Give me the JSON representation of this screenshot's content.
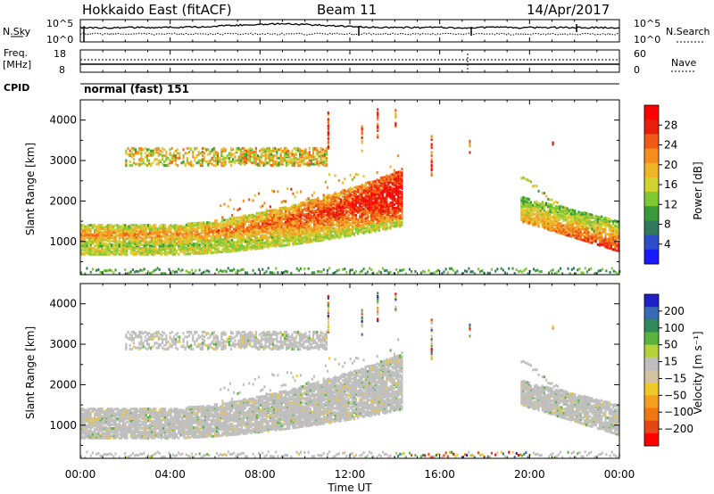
{
  "header": {
    "radar": "Hokkaido East (fitACF)",
    "beam": "Beam 11",
    "date": "14/Apr/2017"
  },
  "noise_panel": {
    "left_label": "N.Sky",
    "right_label": "N.Search",
    "left_ticks": [
      "10^5",
      "10^0"
    ],
    "right_ticks": [
      "10^5",
      "10^0"
    ]
  },
  "freq_panel": {
    "left_label": "Freq.",
    "left_unit": "[MHz]",
    "left_ticks": [
      "18",
      "8"
    ],
    "right_label": "Nave",
    "right_ticks": [
      "60",
      "0"
    ]
  },
  "cpid": {
    "label": "CPID",
    "value": "normal (fast) 151"
  },
  "x_axis": {
    "label": "Time UT",
    "ticks": [
      "00:00",
      "04:00",
      "08:00",
      "12:00",
      "16:00",
      "20:00",
      "00:00"
    ]
  },
  "chart_data": [
    {
      "type": "heatmap",
      "title": "",
      "xlabel": "Time UT",
      "ylabel": "Slant Range [km]",
      "xlim_hours": [
        0,
        24
      ],
      "ylim_km": [
        180,
        4500
      ],
      "y_ticks": [
        "1000",
        "2000",
        "3000",
        "4000"
      ],
      "colorbar": {
        "label": "Power [dB]",
        "ticks": [
          "4",
          "8",
          "12",
          "16",
          "20",
          "24",
          "28"
        ],
        "colors": [
          "#1a1aff",
          "#2d4ec8",
          "#2e7a5a",
          "#3a9a3a",
          "#7ec832",
          "#d2d232",
          "#f0b428",
          "#f58c1e",
          "#f05a14",
          "#e61e0a",
          "#ff0000"
        ]
      },
      "features": [
        {
          "name": "main echo band",
          "t_start": 0.0,
          "t_end": 14.3,
          "range_start_km": 900,
          "range_end_km": 1400,
          "rise_to_km": 2700
        },
        {
          "name": "upper band",
          "t_start": 2.0,
          "t_end": 11.0,
          "range_start_km": 2900,
          "range_end_km": 3300
        },
        {
          "name": "evening band",
          "t_start": 19.6,
          "t_end": 24.0,
          "range_start_km": 700,
          "range_end_km": 2600
        }
      ]
    },
    {
      "type": "heatmap",
      "title": "",
      "xlabel": "Time UT",
      "ylabel": "Slant Range [km]",
      "xlim_hours": [
        0,
        24
      ],
      "ylim_km": [
        180,
        4500
      ],
      "y_ticks": [
        "1000",
        "2000",
        "3000",
        "4000"
      ],
      "colorbar": {
        "label": "Velocity [m s⁻¹]",
        "ticks": [
          "200",
          "100",
          "50",
          "15",
          "−15",
          "−50",
          "−100",
          "−200"
        ],
        "colors": [
          "#2020c8",
          "#3a6ab4",
          "#2e8a5a",
          "#5ab43c",
          "#b4d23c",
          "#bebebe",
          "#d2c3a0",
          "#f0c828",
          "#f5a01e",
          "#f07814",
          "#e64614",
          "#ff0000"
        ]
      },
      "features": [
        {
          "name": "main echo band",
          "t_start": 0.0,
          "t_end": 14.3,
          "dominant_velocity": "ground scatter (grey)"
        },
        {
          "name": "evening band",
          "t_start": 19.6,
          "t_end": 24.0,
          "dominant_velocity": "ground scatter (grey)"
        }
      ]
    }
  ]
}
